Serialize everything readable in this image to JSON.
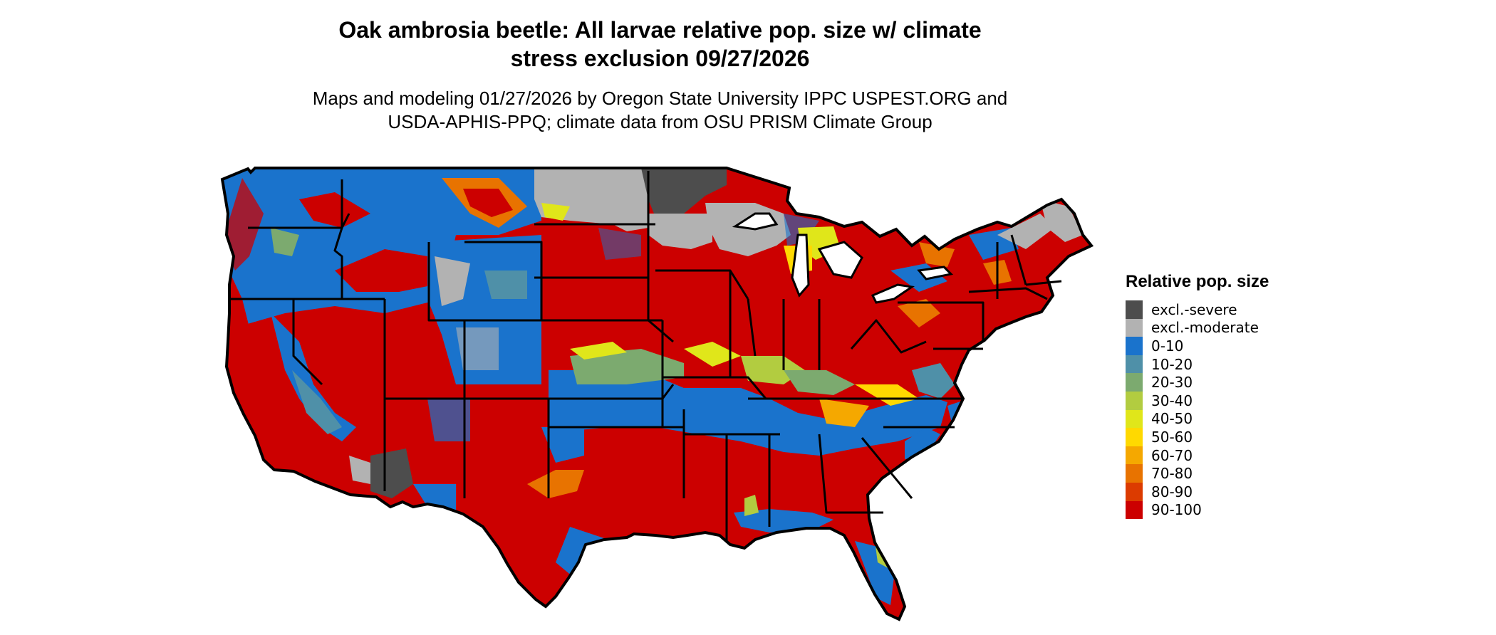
{
  "title": {
    "line1": "Oak ambrosia beetle: All larvae relative pop. size w/ climate",
    "line2": "stress exclusion 09/27/2026"
  },
  "subtitle": {
    "line1": "Maps and modeling 01/27/2026 by Oregon State University IPPC USPEST.ORG and",
    "line2": "USDA-APHIS-PPQ; climate data from OSU PRISM Climate Group"
  },
  "legend": {
    "title": "Relative pop. size",
    "items": [
      {
        "label": "excl.-severe",
        "color": "#4d4d4d"
      },
      {
        "label": "excl.-moderate",
        "color": "#b2b2b2"
      },
      {
        "label": "0-10",
        "color": "#1a73cc"
      },
      {
        "label": "10-20",
        "color": "#4f90a8"
      },
      {
        "label": "20-30",
        "color": "#7caa6f"
      },
      {
        "label": "30-40",
        "color": "#b2cc40"
      },
      {
        "label": "40-50",
        "color": "#e0e61a"
      },
      {
        "label": "50-60",
        "color": "#ffd900"
      },
      {
        "label": "60-70",
        "color": "#f5a800"
      },
      {
        "label": "70-80",
        "color": "#e87300"
      },
      {
        "label": "80-90",
        "color": "#dc3b00"
      },
      {
        "label": "90-100",
        "color": "#cc0000"
      }
    ]
  },
  "map": {
    "region": "contiguous-united-states",
    "border_color": "#000000"
  }
}
